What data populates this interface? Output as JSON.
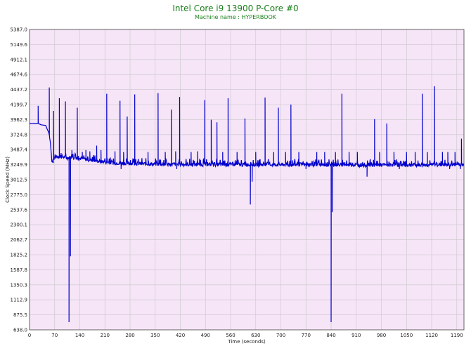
{
  "colors": {
    "plot_background": "#f6e4f7",
    "grid": "#c8c8c8",
    "line": "#0000cc",
    "title": "#1a7f1a"
  },
  "chart_data": {
    "type": "line",
    "title": "Intel Core i9 13900 P-Core #0",
    "subtitle": "Machine name : HYPERBOOK",
    "xlabel": "Time (seconds)",
    "ylabel": "Clock Speed (MHz)",
    "xlim": [
      0,
      1210
    ],
    "ylim": [
      638.0,
      5387.0
    ],
    "grid": true,
    "x_ticks": [
      0,
      70,
      140,
      210,
      280,
      350,
      420,
      490,
      560,
      630,
      700,
      770,
      840,
      910,
      980,
      1050,
      1120,
      1190
    ],
    "y_ticks": [
      638.0,
      875.5,
      1112.9,
      1350.3,
      1587.8,
      1825.2,
      2062.7,
      2300.1,
      2537.6,
      2775.0,
      3012.5,
      3249.9,
      3487.4,
      3724.8,
      3962.3,
      4199.7,
      4437.2,
      4674.6,
      4912.1,
      5149.6,
      5387.0
    ],
    "series": [
      {
        "baseline": [
          [
            0,
            3900
          ],
          [
            25,
            3900
          ],
          [
            32,
            3880
          ],
          [
            45,
            3870
          ],
          [
            50,
            3800
          ],
          [
            54,
            3750
          ],
          [
            58,
            3600
          ],
          [
            62,
            3330
          ],
          [
            66,
            3290
          ],
          [
            70,
            3360
          ],
          [
            80,
            3380
          ],
          [
            95,
            3370
          ],
          [
            105,
            3360
          ],
          [
            130,
            3360
          ],
          [
            150,
            3340
          ],
          [
            175,
            3320
          ],
          [
            200,
            3300
          ],
          [
            230,
            3280
          ],
          [
            280,
            3270
          ],
          [
            340,
            3260
          ],
          [
            420,
            3255
          ],
          [
            560,
            3250
          ],
          [
            700,
            3250
          ],
          [
            900,
            3245
          ],
          [
            1100,
            3245
          ],
          [
            1210,
            3250
          ]
        ],
        "spikes": [
          [
            24,
            4180
          ],
          [
            55,
            4470
          ],
          [
            67,
            4100
          ],
          [
            83,
            4300
          ],
          [
            100,
            4250
          ],
          [
            118,
            3480
          ],
          [
            133,
            4150
          ],
          [
            147,
            3450
          ],
          [
            157,
            3480
          ],
          [
            168,
            3460
          ],
          [
            187,
            3550
          ],
          [
            199,
            3480
          ],
          [
            215,
            4370
          ],
          [
            238,
            3460
          ],
          [
            252,
            4260
          ],
          [
            262,
            3450
          ],
          [
            272,
            4010
          ],
          [
            293,
            4360
          ],
          [
            330,
            3450
          ],
          [
            358,
            4380
          ],
          [
            378,
            3450
          ],
          [
            395,
            4120
          ],
          [
            407,
            3460
          ],
          [
            418,
            4320
          ],
          [
            450,
            3450
          ],
          [
            468,
            3460
          ],
          [
            488,
            4270
          ],
          [
            506,
            3960
          ],
          [
            522,
            3920
          ],
          [
            538,
            3450
          ],
          [
            553,
            4300
          ],
          [
            578,
            3450
          ],
          [
            600,
            3980
          ],
          [
            630,
            3450
          ],
          [
            656,
            4310
          ],
          [
            680,
            3450
          ],
          [
            693,
            4150
          ],
          [
            713,
            3450
          ],
          [
            728,
            4200
          ],
          [
            750,
            3450
          ],
          [
            770,
            3820
          ],
          [
            800,
            3450
          ],
          [
            822,
            3450
          ],
          [
            852,
            3450
          ],
          [
            870,
            4370
          ],
          [
            890,
            3450
          ],
          [
            913,
            3450
          ],
          [
            940,
            3450
          ],
          [
            961,
            3970
          ],
          [
            975,
            3450
          ],
          [
            995,
            3900
          ],
          [
            1015,
            3450
          ],
          [
            1030,
            3450
          ],
          [
            1050,
            3450
          ],
          [
            1074,
            3450
          ],
          [
            1094,
            4370
          ],
          [
            1108,
            3450
          ],
          [
            1128,
            4490
          ],
          [
            1150,
            3450
          ],
          [
            1165,
            3450
          ],
          [
            1185,
            3450
          ],
          [
            1203,
            3660
          ]
        ],
        "dips": [
          [
            110,
            760
          ],
          [
            114,
            1800
          ],
          [
            255,
            3180
          ],
          [
            410,
            3180
          ],
          [
            615,
            2620
          ],
          [
            620,
            2980
          ],
          [
            770,
            3180
          ],
          [
            840,
            760
          ],
          [
            843,
            2500
          ],
          [
            940,
            3060
          ],
          [
            1030,
            3180
          ],
          [
            1170,
            3180
          ],
          [
            1200,
            3180
          ]
        ]
      }
    ]
  }
}
